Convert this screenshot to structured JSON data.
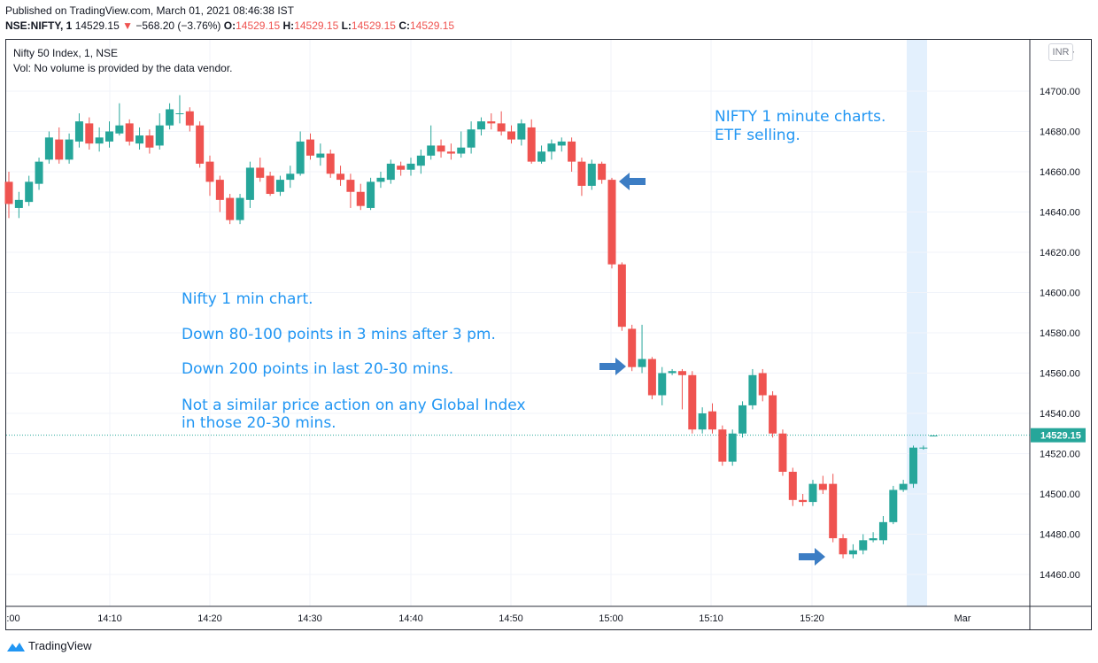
{
  "header": {
    "published": "Published on TradingView.com, March 01, 2021 08:46:38 IST",
    "symbol": "NSE:NIFTY, 1",
    "last": "14529.15",
    "change_arrow": "▼",
    "change": "−568.20 (−3.76%)",
    "o_label": "O:",
    "o_value": "14529.15",
    "h_label": "H:",
    "h_value": "14529.15",
    "l_label": "L:",
    "l_value": "14529.15",
    "c_label": "C:",
    "c_value": "14529.15"
  },
  "legend": {
    "title": "Nifty 50 Index, 1, NSE",
    "volume_note": "Vol: No volume is provided by the data vendor."
  },
  "currency_button": "INR",
  "annotations": {
    "top_right": [
      "NIFTY 1 minute charts.",
      "ETF selling."
    ],
    "middle": [
      "Nifty 1 min chart.",
      "Down 80-100 points in 3 mins after 3 pm.",
      "Down 200 points in last 20-30 mins.",
      "Not a similar price action on any Global Index",
      "in those 20-30 mins."
    ]
  },
  "footer": {
    "brand": "TradingView"
  },
  "colors": {
    "up": "#26a69a",
    "down": "#ef5350",
    "annotation": "#2196f3",
    "price_tag": "#26a69a",
    "highlight": "#e3f0fd"
  },
  "chart_data": {
    "type": "candlestick",
    "interval": "1 minute",
    "x_tick_labels": [
      ":00",
      "14:10",
      "14:20",
      "14:30",
      "14:40",
      "14:50",
      "15:00",
      "15:10",
      "15:20",
      "Mar"
    ],
    "y_tick_labels": [
      "14460.00",
      "14480.00",
      "14500.00",
      "14520.00",
      "14540.00",
      "14560.00",
      "14580.00",
      "14600.00",
      "14620.00",
      "14640.00",
      "14660.00",
      "14680.00",
      "14700.00"
    ],
    "y_top_label": "14",
    "ylim": [
      14445,
      14722
    ],
    "current_price": "14529.15",
    "candles": [
      [
        14655,
        14644,
        14660,
        14637
      ],
      [
        14642,
        14646,
        14650,
        14637
      ],
      [
        14645,
        14655,
        14658,
        14643
      ],
      [
        14654,
        14665,
        14667,
        14651
      ],
      [
        14666,
        14677,
        14680,
        14664
      ],
      [
        14676,
        14666,
        14682,
        14664
      ],
      [
        14666,
        14676,
        14679,
        14664
      ],
      [
        14675,
        14685,
        14689,
        14672
      ],
      [
        14684,
        14674,
        14687,
        14671
      ],
      [
        14674,
        14677,
        14682,
        14670
      ],
      [
        14675,
        14680,
        14685,
        14672
      ],
      [
        14679,
        14683,
        14694,
        14678
      ],
      [
        14684,
        14675,
        14686,
        14673
      ],
      [
        14674,
        14678,
        14682,
        14671
      ],
      [
        14678,
        14672,
        14681,
        14669
      ],
      [
        14673,
        14683,
        14689,
        14671
      ],
      [
        14683,
        14691,
        14694,
        14681
      ],
      [
        14689,
        14689,
        14698,
        14684
      ],
      [
        14690,
        14683,
        14692,
        14680
      ],
      [
        14683,
        14664,
        14685,
        14662
      ],
      [
        14665,
        14655,
        14668,
        14648
      ],
      [
        14656,
        14646,
        14658,
        14640
      ],
      [
        14647,
        14636,
        14649,
        14634
      ],
      [
        14636,
        14647,
        14649,
        14634
      ],
      [
        14646,
        14662,
        14665,
        14642
      ],
      [
        14662,
        14657,
        14667,
        14655
      ],
      [
        14658,
        14649,
        14660,
        14648
      ],
      [
        14650,
        14656,
        14658,
        14648
      ],
      [
        14656,
        14659,
        14663,
        14652
      ],
      [
        14659,
        14675,
        14680,
        14658
      ],
      [
        14676,
        14668,
        14679,
        14666
      ],
      [
        14667,
        14669,
        14674,
        14663
      ],
      [
        14669,
        14659,
        14671,
        14657
      ],
      [
        14659,
        14656,
        14663,
        14653
      ],
      [
        14656,
        14650,
        14659,
        14642
      ],
      [
        14650,
        14643,
        14654,
        14641
      ],
      [
        14642,
        14655,
        14657,
        14641
      ],
      [
        14655,
        14657,
        14660,
        14652
      ],
      [
        14656,
        14664,
        14666,
        14654
      ],
      [
        14663,
        14661,
        14665,
        14658
      ],
      [
        14661,
        14664,
        14667,
        14658
      ],
      [
        14663,
        14668,
        14671,
        14659
      ],
      [
        14668,
        14673,
        14683,
        14666
      ],
      [
        14673,
        14670,
        14676,
        14667
      ],
      [
        14670,
        14669,
        14674,
        14666
      ],
      [
        14669,
        14672,
        14680,
        14667
      ],
      [
        14672,
        14681,
        14685,
        14669
      ],
      [
        14681,
        14685,
        14687,
        14678
      ],
      [
        14685,
        14684,
        14689,
        14681
      ],
      [
        14684,
        14680,
        14690,
        14678
      ],
      [
        14680,
        14676,
        14683,
        14674
      ],
      [
        14676,
        14684,
        14686,
        14673
      ],
      [
        14682,
        14665,
        14686,
        14664
      ],
      [
        14665,
        14670,
        14673,
        14664
      ],
      [
        14670,
        14674,
        14676,
        14666
      ],
      [
        14673,
        14675,
        14677,
        14670
      ],
      [
        14675,
        14665,
        14677,
        14660
      ],
      [
        14665,
        14653,
        14667,
        14648
      ],
      [
        14653,
        14664,
        14666,
        14651
      ],
      [
        14664,
        14656,
        14665,
        14654
      ],
      [
        14656,
        14614,
        14657,
        14612
      ],
      [
        14614,
        14583,
        14615,
        14581
      ],
      [
        14582,
        14563,
        14584,
        14561
      ],
      [
        14563,
        14567,
        14584,
        14560
      ],
      [
        14567,
        14549,
        14568,
        14547
      ],
      [
        14549,
        14560,
        14563,
        14544
      ],
      [
        14560,
        14561,
        14562,
        14559
      ],
      [
        14561,
        14559,
        14562,
        14542
      ],
      [
        14559,
        14532,
        14561,
        14530
      ],
      [
        14532,
        14540,
        14543,
        14530
      ],
      [
        14541,
        14532,
        14545,
        14530
      ],
      [
        14532,
        14516,
        14534,
        14514
      ],
      [
        14516,
        14530,
        14532,
        14514
      ],
      [
        14530,
        14544,
        14546,
        14528
      ],
      [
        14544,
        14559,
        14562,
        14542
      ],
      [
        14560,
        14549,
        14562,
        14546
      ],
      [
        14549,
        14530,
        14551,
        14528
      ],
      [
        14530,
        14511,
        14532,
        14509
      ],
      [
        14511,
        14497,
        14513,
        14494
      ],
      [
        14497,
        14496,
        14500,
        14494
      ],
      [
        14496,
        14505,
        14507,
        14494
      ],
      [
        14505,
        14502,
        14509,
        14500
      ],
      [
        14505,
        14478,
        14510,
        14476
      ],
      [
        14478,
        14470,
        14480,
        14468
      ],
      [
        14470,
        14472,
        14475,
        14468
      ],
      [
        14472,
        14477,
        14480,
        14470
      ],
      [
        14477,
        14478,
        14481,
        14476
      ],
      [
        14477,
        14486,
        14489,
        14475
      ],
      [
        14486,
        14502,
        14504,
        14485
      ],
      [
        14502,
        14505,
        14507,
        14501
      ],
      [
        14505,
        14523,
        14524,
        14503
      ],
      [
        14523,
        14523,
        14524,
        14522
      ],
      [
        14529,
        14529,
        14529,
        14529
      ]
    ]
  }
}
